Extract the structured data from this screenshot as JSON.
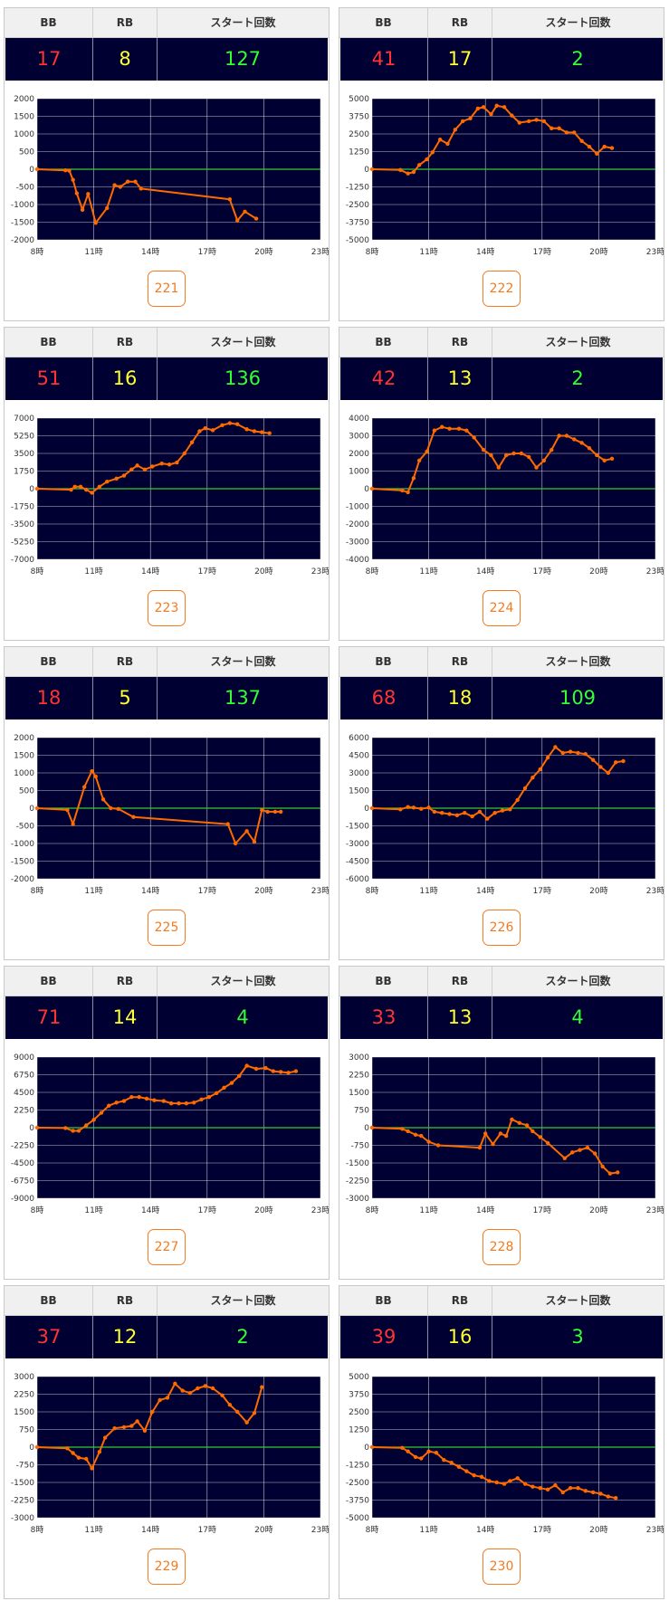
{
  "headers": {
    "bb": "BB",
    "rb": "RB",
    "start": "スタート回数"
  },
  "x_ticks": [
    "8時",
    "11時",
    "14時",
    "17時",
    "20時",
    "23時"
  ],
  "colors": {
    "background": "#000033",
    "line": "#ff6a00",
    "zero": "#33cc33",
    "bb": "#ff3333",
    "rb": "#ffff33",
    "start": "#33ff33"
  },
  "machines": [
    {
      "id": "221",
      "bb": "17",
      "rb": "8",
      "start": "127"
    },
    {
      "id": "222",
      "bb": "41",
      "rb": "17",
      "start": "2"
    },
    {
      "id": "223",
      "bb": "51",
      "rb": "16",
      "start": "136"
    },
    {
      "id": "224",
      "bb": "42",
      "rb": "13",
      "start": "2"
    },
    {
      "id": "225",
      "bb": "18",
      "rb": "5",
      "start": "137"
    },
    {
      "id": "226",
      "bb": "68",
      "rb": "18",
      "start": "109"
    },
    {
      "id": "227",
      "bb": "71",
      "rb": "14",
      "start": "4"
    },
    {
      "id": "228",
      "bb": "33",
      "rb": "13",
      "start": "4"
    },
    {
      "id": "229",
      "bb": "37",
      "rb": "12",
      "start": "2"
    },
    {
      "id": "230",
      "bb": "39",
      "rb": "16",
      "start": "3"
    }
  ],
  "chart_data": [
    {
      "type": "line",
      "x_unit": "hour",
      "xlim": [
        8,
        23
      ],
      "ylim": [
        -2000,
        2000
      ],
      "yticks": [
        "2000",
        "1500",
        "1000",
        "500",
        "0",
        "-500",
        "-1000",
        "-1500",
        "-2000"
      ],
      "x": [
        8,
        9.5,
        9.7,
        9.9,
        10.1,
        10.4,
        10.7,
        11.1,
        11.7,
        12.1,
        12.4,
        12.8,
        13.2,
        13.5,
        18.2,
        18.6,
        19,
        19.6
      ],
      "y": [
        0,
        -30,
        -40,
        -300,
        -680,
        -1150,
        -700,
        -1520,
        -1100,
        -450,
        -500,
        -350,
        -350,
        -550,
        -850,
        -1450,
        -1200,
        -1400
      ]
    },
    {
      "type": "line",
      "x_unit": "hour",
      "xlim": [
        8,
        23
      ],
      "ylim": [
        -5000,
        5000
      ],
      "yticks": [
        "5000",
        "3750",
        "2500",
        "1250",
        "0",
        "-1250",
        "-2500",
        "-3750",
        "-5000"
      ],
      "x": [
        8,
        9.5,
        9.9,
        10.2,
        10.5,
        10.9,
        11.2,
        11.6,
        12,
        12.4,
        12.8,
        13.2,
        13.6,
        13.9,
        14.3,
        14.6,
        15,
        15.4,
        15.8,
        16.3,
        16.7,
        17.1,
        17.5,
        17.9,
        18.3,
        18.7,
        19.1,
        19.5,
        19.9,
        20.3,
        20.7
      ],
      "y": [
        0,
        -50,
        -300,
        -200,
        300,
        700,
        1200,
        2100,
        1800,
        2800,
        3400,
        3600,
        4300,
        4400,
        3900,
        4500,
        4400,
        3800,
        3300,
        3400,
        3500,
        3400,
        2900,
        2900,
        2600,
        2600,
        2000,
        1600,
        1100,
        1600,
        1500
      ]
    },
    {
      "type": "line",
      "x_unit": "hour",
      "xlim": [
        8,
        23
      ],
      "ylim": [
        -7000,
        7000
      ],
      "yticks": [
        "7000",
        "5250",
        "3500",
        "1750",
        "0",
        "-1750",
        "-3500",
        "-5250",
        "-7000"
      ],
      "x": [
        8,
        9.8,
        10,
        10.3,
        10.6,
        10.9,
        11.3,
        11.7,
        12.2,
        12.6,
        13,
        13.3,
        13.7,
        14.1,
        14.6,
        15,
        15.4,
        15.8,
        16.2,
        16.6,
        16.9,
        17.3,
        17.8,
        18.2,
        18.6,
        19.1,
        19.5,
        19.9,
        20.3
      ],
      "y": [
        0,
        -100,
        200,
        200,
        -100,
        -400,
        200,
        700,
        1000,
        1300,
        1900,
        2300,
        1900,
        2200,
        2500,
        2400,
        2600,
        3500,
        4600,
        5700,
        6000,
        5800,
        6300,
        6500,
        6400,
        5900,
        5700,
        5600,
        5500
      ]
    },
    {
      "type": "line",
      "x_unit": "hour",
      "xlim": [
        8,
        23
      ],
      "ylim": [
        -4000,
        4000
      ],
      "yticks": [
        "4000",
        "3000",
        "2000",
        "1000",
        "0",
        "-1000",
        "-2000",
        "-3000",
        "-4000"
      ],
      "x": [
        8,
        9.6,
        9.9,
        10.2,
        10.5,
        10.9,
        11.3,
        11.7,
        12.1,
        12.6,
        13,
        13.4,
        13.9,
        14.3,
        14.7,
        15.1,
        15.5,
        15.9,
        16.3,
        16.7,
        17.1,
        17.5,
        17.9,
        18.3,
        18.7,
        19.1,
        19.5,
        19.9,
        20.3,
        20.7
      ],
      "y": [
        0,
        -100,
        -200,
        600,
        1600,
        2100,
        3300,
        3500,
        3400,
        3400,
        3300,
        2900,
        2200,
        1900,
        1200,
        1900,
        2000,
        2000,
        1800,
        1200,
        1600,
        2200,
        3000,
        3000,
        2800,
        2600,
        2300,
        1900,
        1600,
        1700
      ]
    },
    {
      "type": "line",
      "x_unit": "hour",
      "xlim": [
        8,
        23
      ],
      "ylim": [
        -2000,
        2000
      ],
      "yticks": [
        "2000",
        "1500",
        "1000",
        "500",
        "0",
        "-500",
        "-1000",
        "-1500",
        "-2000"
      ],
      "x": [
        8,
        9.6,
        9.9,
        10.5,
        10.9,
        11.1,
        11.5,
        11.9,
        12.3,
        13.1,
        18.1,
        18.5,
        19.1,
        19.5,
        19.9,
        20.2,
        20.6,
        20.9
      ],
      "y": [
        0,
        -50,
        -450,
        600,
        1050,
        900,
        250,
        0,
        -20,
        -250,
        -450,
        -1000,
        -650,
        -950,
        -50,
        -100,
        -100,
        -100
      ]
    },
    {
      "type": "line",
      "x_unit": "hour",
      "xlim": [
        8,
        23
      ],
      "ylim": [
        -6000,
        6000
      ],
      "yticks": [
        "6000",
        "4500",
        "3000",
        "1500",
        "0",
        "-1500",
        "-3000",
        "-4500",
        "-6000"
      ],
      "x": [
        8,
        9.5,
        9.9,
        10.2,
        10.6,
        11,
        11.3,
        11.7,
        12.1,
        12.5,
        12.9,
        13.3,
        13.7,
        14.1,
        14.5,
        14.9,
        15.3,
        15.7,
        16.1,
        16.5,
        16.9,
        17.3,
        17.7,
        18.1,
        18.5,
        18.9,
        19.3,
        19.7,
        20.1,
        20.5,
        20.9,
        21.3
      ],
      "y": [
        0,
        -100,
        100,
        50,
        -50,
        50,
        -300,
        -400,
        -500,
        -600,
        -400,
        -700,
        -300,
        -900,
        -400,
        -200,
        -100,
        700,
        1700,
        2600,
        3300,
        4300,
        5200,
        4700,
        4800,
        4700,
        4600,
        4100,
        3500,
        3000,
        3900,
        4000
      ]
    },
    {
      "type": "line",
      "x_unit": "hour",
      "xlim": [
        8,
        23
      ],
      "ylim": [
        -9000,
        9000
      ],
      "yticks": [
        "9000",
        "6750",
        "4500",
        "2250",
        "0",
        "-2250",
        "-4500",
        "-6750",
        "-9000"
      ],
      "x": [
        8,
        9.5,
        9.9,
        10.2,
        10.6,
        11,
        11.4,
        11.8,
        12.2,
        12.6,
        13,
        13.4,
        13.8,
        14.2,
        14.7,
        15.1,
        15.5,
        15.9,
        16.3,
        16.7,
        17.1,
        17.5,
        17.9,
        18.3,
        18.7,
        19.1,
        19.6,
        20.1,
        20.5,
        20.9,
        21.3,
        21.7
      ],
      "y": [
        0,
        -50,
        -400,
        -400,
        300,
        1000,
        1900,
        2800,
        3200,
        3400,
        3900,
        3900,
        3700,
        3500,
        3400,
        3100,
        3100,
        3100,
        3200,
        3600,
        3900,
        4400,
        5100,
        5700,
        6600,
        7900,
        7500,
        7600,
        7200,
        7100,
        7000,
        7200
      ]
    },
    {
      "type": "line",
      "x_unit": "hour",
      "xlim": [
        8,
        23
      ],
      "ylim": [
        -3000,
        3000
      ],
      "yticks": [
        "3000",
        "2250",
        "1500",
        "750",
        "0",
        "-750",
        "-1500",
        "-2250",
        "-3000"
      ],
      "x": [
        8,
        9.6,
        9.9,
        10.3,
        10.6,
        11,
        11.5,
        13.7,
        14,
        14.4,
        14.8,
        15.1,
        15.4,
        15.8,
        16.2,
        16.5,
        16.9,
        17.3,
        18.2,
        18.6,
        19,
        19.4,
        19.8,
        20.2,
        20.6,
        21
      ],
      "y": [
        0,
        -50,
        -150,
        -300,
        -350,
        -600,
        -750,
        -850,
        -250,
        -700,
        -250,
        -350,
        350,
        200,
        100,
        -150,
        -400,
        -650,
        -1300,
        -1050,
        -950,
        -850,
        -1100,
        -1650,
        -1950,
        -1900
      ]
    },
    {
      "type": "line",
      "x_unit": "hour",
      "xlim": [
        8,
        23
      ],
      "ylim": [
        -3000,
        3000
      ],
      "yticks": [
        "3000",
        "2250",
        "1500",
        "750",
        "0",
        "-750",
        "-1500",
        "-2250",
        "-3000"
      ],
      "x": [
        8,
        9.6,
        9.9,
        10.2,
        10.6,
        10.9,
        11.3,
        11.6,
        12.1,
        12.6,
        13,
        13.3,
        13.7,
        14.1,
        14.5,
        14.9,
        15.3,
        15.7,
        16.1,
        16.5,
        16.9,
        17.3,
        17.8,
        18.2,
        18.6,
        19.1,
        19.5,
        19.9
      ],
      "y": [
        0,
        -50,
        -250,
        -450,
        -500,
        -900,
        -200,
        400,
        800,
        850,
        900,
        1100,
        700,
        1500,
        2000,
        2100,
        2700,
        2400,
        2300,
        2500,
        2600,
        2500,
        2200,
        1800,
        1500,
        1050,
        1450,
        2550
      ]
    },
    {
      "type": "line",
      "x_unit": "hour",
      "xlim": [
        8,
        23
      ],
      "ylim": [
        -5000,
        5000
      ],
      "yticks": [
        "5000",
        "3750",
        "2500",
        "1250",
        "0",
        "-1250",
        "-2500",
        "-3750",
        "-5000"
      ],
      "x": [
        8,
        9.6,
        9.9,
        10.3,
        10.6,
        11,
        11.4,
        11.8,
        12.2,
        12.6,
        13,
        13.4,
        13.8,
        14.2,
        14.6,
        15,
        15.3,
        15.7,
        16.1,
        16.5,
        16.9,
        17.3,
        17.7,
        18.1,
        18.5,
        18.9,
        19.3,
        19.7,
        20.1,
        20.5,
        20.9
      ],
      "y": [
        0,
        -50,
        -300,
        -700,
        -800,
        -300,
        -400,
        -900,
        -1100,
        -1400,
        -1700,
        -2000,
        -2100,
        -2400,
        -2500,
        -2600,
        -2400,
        -2200,
        -2600,
        -2800,
        -2900,
        -3000,
        -2700,
        -3200,
        -2900,
        -2900,
        -3100,
        -3200,
        -3300,
        -3500,
        -3600
      ]
    }
  ]
}
